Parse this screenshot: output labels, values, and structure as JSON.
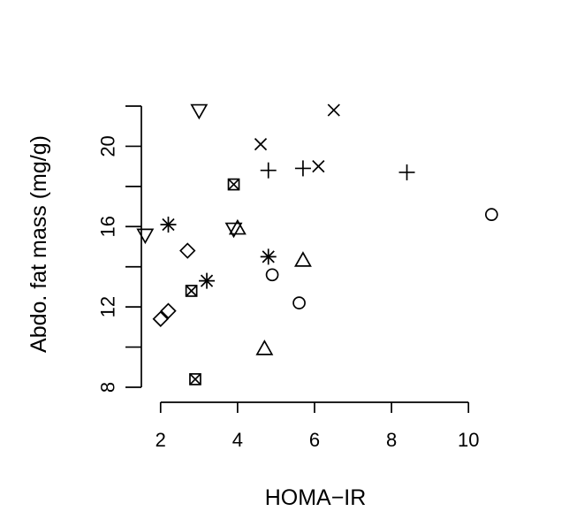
{
  "chart_data": {
    "type": "scatter",
    "xlabel": "HOMA−IR",
    "ylabel": "Abdo. fat mass (mg/g)",
    "xlim": [
      1.5,
      10.5
    ],
    "ylim": [
      8,
      22
    ],
    "x_ticks": [
      2,
      4,
      6,
      8,
      10
    ],
    "x_tick_labels": [
      "2",
      "4",
      "6",
      "8",
      "10"
    ],
    "y_ticks": [
      8,
      10,
      12,
      14,
      16,
      18,
      20,
      22
    ],
    "y_tick_labels": [
      "8",
      "",
      "12",
      "",
      "16",
      "",
      "20",
      ""
    ],
    "grid": false,
    "series": [
      {
        "marker": "circle",
        "points": [
          [
            4.9,
            13.6
          ],
          [
            5.6,
            12.2
          ],
          [
            10.6,
            16.6
          ]
        ]
      },
      {
        "marker": "triangle-up",
        "points": [
          [
            4.7,
            9.9
          ],
          [
            5.7,
            14.3
          ],
          [
            4.0,
            15.9
          ]
        ]
      },
      {
        "marker": "plus",
        "points": [
          [
            4.8,
            18.8
          ],
          [
            5.7,
            18.9
          ],
          [
            8.4,
            18.7
          ]
        ]
      },
      {
        "marker": "cross",
        "points": [
          [
            4.6,
            20.1
          ],
          [
            6.1,
            19.0
          ],
          [
            6.5,
            21.8
          ]
        ]
      },
      {
        "marker": "diamond",
        "points": [
          [
            2.0,
            11.4
          ],
          [
            2.2,
            11.8
          ],
          [
            2.7,
            14.8
          ]
        ]
      },
      {
        "marker": "triangle-down",
        "points": [
          [
            1.6,
            15.6
          ],
          [
            3.0,
            21.8
          ],
          [
            3.9,
            15.9
          ]
        ]
      },
      {
        "marker": "boxed-x",
        "points": [
          [
            2.9,
            8.4
          ],
          [
            2.8,
            12.8
          ],
          [
            3.9,
            18.1
          ]
        ]
      },
      {
        "marker": "asterisk",
        "points": [
          [
            2.2,
            16.1
          ],
          [
            3.2,
            13.3
          ],
          [
            4.8,
            14.5
          ]
        ]
      }
    ]
  }
}
